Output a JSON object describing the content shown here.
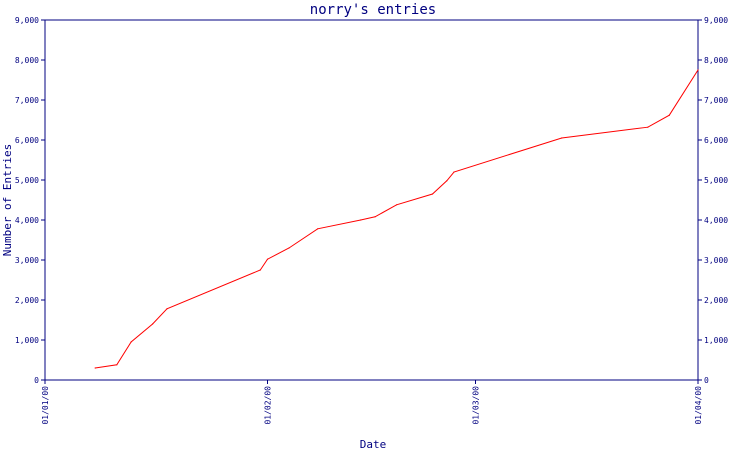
{
  "chart_data": {
    "type": "line",
    "title": "norry's entries",
    "xlabel": "Date",
    "ylabel": "Number of Entries",
    "x_ticks": [
      "01/01/00",
      "01/02/00",
      "01/03/00",
      "01/04/00"
    ],
    "xlim": [
      "2000-01-01",
      "2000-04-01"
    ],
    "ylim": [
      0,
      9000
    ],
    "y_ticks": [
      "0",
      "1,000",
      "2,000",
      "3,000",
      "4,000",
      "5,000",
      "6,000",
      "7,000",
      "8,000",
      "9,000"
    ],
    "y_tick_values": [
      0,
      1000,
      2000,
      3000,
      4000,
      5000,
      6000,
      7000,
      8000,
      9000
    ],
    "grid": false,
    "series": [
      {
        "color": "#ff0000",
        "points": [
          [
            "2000-01-08",
            300
          ],
          [
            "2000-01-11",
            380
          ],
          [
            "2000-01-13",
            950
          ],
          [
            "2000-01-16",
            1400
          ],
          [
            "2000-01-18",
            1780
          ],
          [
            "2000-01-31",
            2750
          ],
          [
            "2000-02-01",
            3020
          ],
          [
            "2000-02-04",
            3300
          ],
          [
            "2000-02-08",
            3780
          ],
          [
            "2000-02-14",
            4000
          ],
          [
            "2000-02-16",
            4080
          ],
          [
            "2000-02-19",
            4380
          ],
          [
            "2000-02-24",
            4650
          ],
          [
            "2000-02-26",
            4980
          ],
          [
            "2000-02-27",
            5200
          ],
          [
            "2000-03-13",
            6050
          ],
          [
            "2000-03-25",
            6320
          ],
          [
            "2000-03-28",
            6620
          ],
          [
            "2000-04-01",
            7750
          ]
        ]
      }
    ],
    "colors": {
      "axis": "#000080",
      "text": "#000080",
      "line": "#ff0000",
      "background": "#ffffff"
    }
  }
}
